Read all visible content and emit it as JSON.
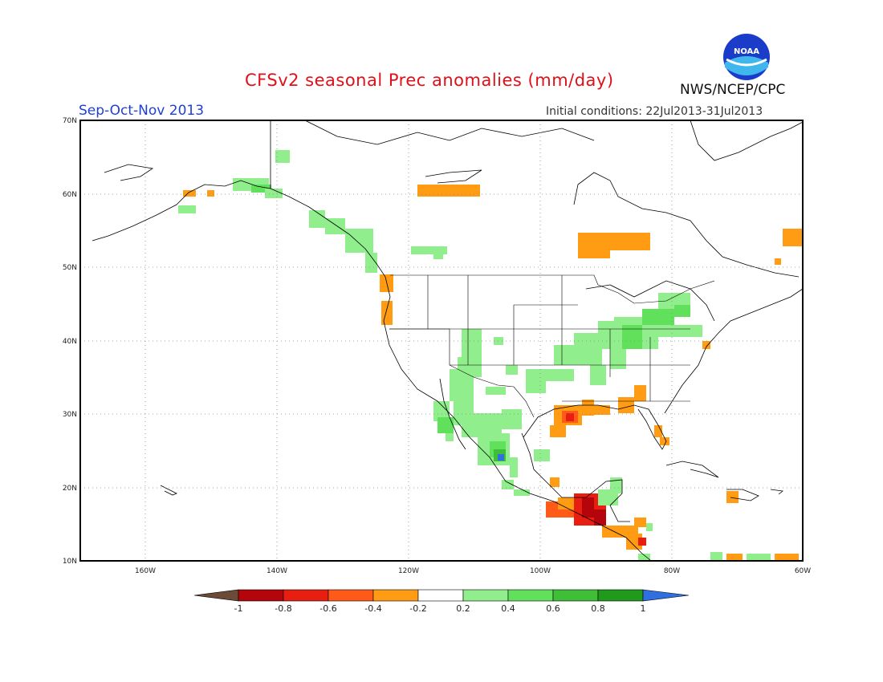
{
  "header": {
    "title": "CFSv2 seasonal Prec anomalies (mm/day)",
    "season": "Sep-Oct-Nov 2013",
    "initial_conditions": "Initial conditions: 22Jul2013-31Jul2013",
    "agency": "NWS/NCEP/CPC",
    "logo_text": "NOAA"
  },
  "map": {
    "lat_labels": [
      "70N",
      "60N",
      "50N",
      "40N",
      "30N",
      "20N",
      "10N"
    ],
    "lon_labels": [
      "160W",
      "140W",
      "120W",
      "100W",
      "80W",
      "60W"
    ],
    "lat_values": [
      70,
      60,
      50,
      40,
      30,
      20,
      10
    ],
    "lon_values": [
      -160,
      -140,
      -120,
      -100,
      -80,
      -60
    ]
  },
  "colorbar": {
    "labels": [
      "-1",
      "-0.8",
      "-0.6",
      "-0.4",
      "-0.2",
      "0.2",
      "0.4",
      "0.6",
      "0.8",
      "1"
    ],
    "colors": [
      "#6b4a37",
      "#b3050b",
      "#e81f10",
      "#ff5a17",
      "#ff9c13",
      "#ffffff",
      "#90ee8c",
      "#61e05b",
      "#3fbf38",
      "#1f9a1a",
      "#2f6fe0"
    ]
  }
}
